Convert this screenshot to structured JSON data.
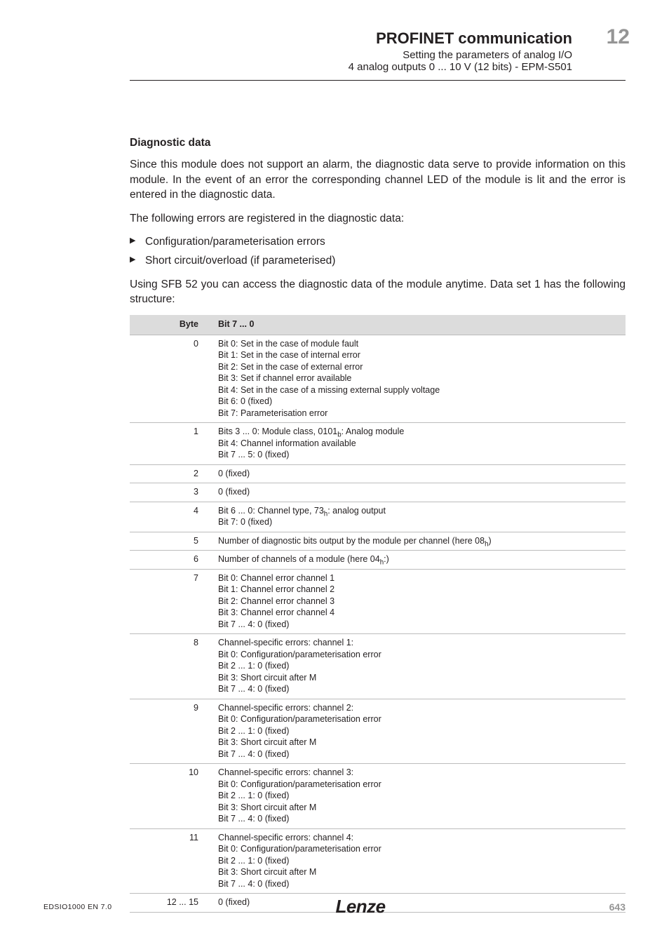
{
  "header": {
    "title": "PROFINET communication",
    "subtitle1": "Setting the parameters of analog I/O",
    "subtitle2": "4 analog outputs 0 ... 10 V (12 bits) - EPM-S501",
    "chapter": "12"
  },
  "section_heading": "Diagnostic data",
  "paragraphs": {
    "p1": "Since this module does not support an alarm, the diagnostic data serve to provide information on this module. In the event of an error the corresponding channel LED of the module is lit and the error is entered in the diagnostic data.",
    "p2": "The following errors are registered in the diagnostic data:",
    "p3": "Using SFB 52 you can access the diagnostic data of the module anytime. Data set 1 has the following structure:"
  },
  "bullets": [
    "Configuration/parameterisation errors",
    "Short circuit/overload (if parameterised)"
  ],
  "table": {
    "columns": [
      "Byte",
      "Bit 7 ... 0"
    ],
    "rows": [
      {
        "byte": "0",
        "lines": [
          "Bit 0: Set in the case of module fault",
          "Bit 1: Set in the case of internal error",
          "Bit 2: Set in the case of external error",
          "Bit 3: Set if channel error available",
          "Bit 4: Set in the case of a missing external supply voltage",
          "Bit 6: 0 (fixed)",
          "Bit 7: Parameterisation error"
        ]
      },
      {
        "byte": "1",
        "lines": [
          "Bits 3 ... 0: Module class, 0101|b|: Analog module",
          "Bit 4: Channel information available",
          "Bit 7 ... 5: 0 (fixed)"
        ]
      },
      {
        "byte": "2",
        "lines": [
          "0 (fixed)"
        ]
      },
      {
        "byte": "3",
        "lines": [
          "0 (fixed)"
        ]
      },
      {
        "byte": "4",
        "lines": [
          "Bit 6 ... 0: Channel type, 73|h|: analog output",
          "Bit 7: 0 (fixed)"
        ]
      },
      {
        "byte": "5",
        "lines": [
          "Number of diagnostic bits output by the module per channel (here 08|h|)"
        ]
      },
      {
        "byte": "6",
        "lines": [
          "Number of channels of a module (here 04|h|:)"
        ]
      },
      {
        "byte": "7",
        "lines": [
          "Bit 0: Channel error channel 1",
          "Bit 1: Channel error channel 2",
          "Bit 2: Channel error channel 3",
          "Bit 3: Channel error channel 4",
          "Bit 7 ... 4: 0 (fixed)"
        ]
      },
      {
        "byte": "8",
        "lines": [
          "Channel-specific errors: channel 1:",
          "Bit 0: Configuration/parameterisation error",
          "Bit 2 ... 1: 0 (fixed)",
          "Bit 3: Short circuit after M",
          "Bit 7 ... 4: 0 (fixed)"
        ]
      },
      {
        "byte": "9",
        "lines": [
          "Channel-specific errors: channel 2:",
          "Bit 0: Configuration/parameterisation error",
          "Bit 2 ... 1: 0 (fixed)",
          "Bit 3: Short circuit after M",
          "Bit 7 ... 4: 0 (fixed)"
        ]
      },
      {
        "byte": "10",
        "lines": [
          "Channel-specific errors: channel 3:",
          "Bit 0: Configuration/parameterisation error",
          "Bit 2 ... 1: 0 (fixed)",
          "Bit 3: Short circuit after M",
          "Bit 7 ... 4: 0 (fixed)"
        ]
      },
      {
        "byte": "11",
        "lines": [
          "Channel-specific errors: channel 4:",
          "Bit 0: Configuration/parameterisation error",
          "Bit 2 ... 1: 0 (fixed)",
          "Bit 3: Short circuit after M",
          "Bit 7 ... 4: 0 (fixed)"
        ]
      },
      {
        "byte": "12 ... 15",
        "lines": [
          "0 (fixed)"
        ]
      }
    ]
  },
  "footer": {
    "left": "EDSIO1000 EN 7.0",
    "logo": "Lenze",
    "page": "643"
  },
  "colors": {
    "text": "#231f20",
    "muted": "#959595",
    "table_header_bg": "#dcdcdc",
    "table_border": "#bcbcbc",
    "background": "#ffffff"
  },
  "typography": {
    "body_fontsize_pt": 11.5,
    "h3_fontsize_pt": 11.5,
    "header_title_pt": 16,
    "chapter_pt": 22,
    "table_fontsize_pt": 9.5,
    "footer_fontsize_pt": 8
  }
}
